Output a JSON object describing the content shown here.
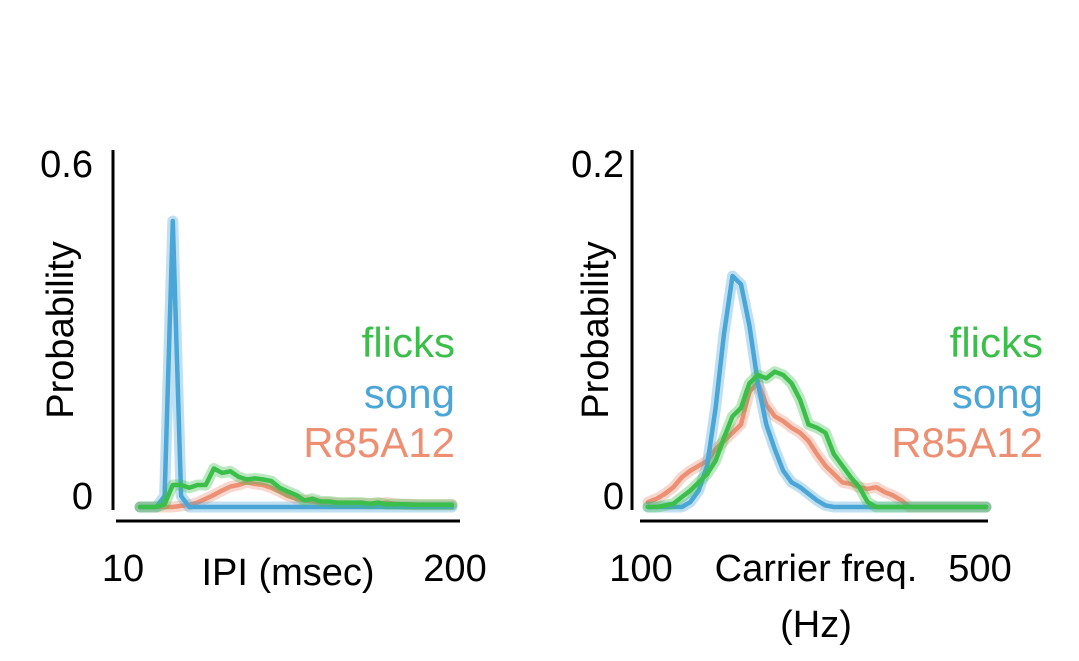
{
  "colors": {
    "flicks": "#3cbe4b",
    "song": "#4aa6d6",
    "R85A12": "#ec8f72"
  },
  "chart_data": [
    {
      "type": "line",
      "xlabel": "IPI (msec)",
      "ylabel": "Probability",
      "xlim": [
        10,
        200
      ],
      "ylim": [
        0,
        0.6
      ],
      "x_tick_labels": [
        "10",
        "200"
      ],
      "y_tick_labels": [
        "0",
        "0.6"
      ],
      "legend": [
        "flicks",
        "song",
        "R85A12"
      ],
      "legend_position": "right",
      "x": [
        10,
        15,
        20,
        25,
        30,
        35,
        40,
        45,
        50,
        55,
        60,
        65,
        70,
        75,
        80,
        85,
        90,
        95,
        100,
        105,
        110,
        115,
        120,
        125,
        130,
        135,
        140,
        145,
        150,
        155,
        160,
        165,
        170,
        175,
        180,
        185,
        190,
        195,
        200
      ],
      "series": [
        {
          "name": "flicks",
          "color": "#3cbe4b",
          "values": [
            0.0,
            0.0,
            0.0,
            0.005,
            0.04,
            0.04,
            0.035,
            0.04,
            0.04,
            0.07,
            0.062,
            0.065,
            0.055,
            0.05,
            0.052,
            0.05,
            0.047,
            0.035,
            0.028,
            0.022,
            0.012,
            0.015,
            0.01,
            0.01,
            0.008,
            0.008,
            0.008,
            0.008,
            0.006,
            0.008,
            0.005,
            0.005,
            0.005,
            0.004,
            0.004,
            0.004,
            0.004,
            0.004,
            0.004
          ]
        },
        {
          "name": "song",
          "color": "#4aa6d6",
          "values": [
            0.0,
            0.0,
            0.0,
            0.02,
            0.52,
            0.02,
            0.0,
            0.0,
            0.0,
            0.0,
            0.0,
            0.0,
            0.0,
            0.0,
            0.0,
            0.0,
            0.0,
            0.0,
            0.0,
            0.0,
            0.0,
            0.0,
            0.0,
            0.0,
            0.0,
            0.0,
            0.0,
            0.0,
            0.0,
            0.0,
            0.0,
            0.0,
            0.0,
            0.0,
            0.0,
            0.0,
            0.0,
            0.0,
            0.0
          ]
        },
        {
          "name": "R85A12",
          "color": "#ec8f72",
          "values": [
            0.0,
            0.0,
            0.0,
            0.0,
            0.0,
            0.002,
            0.004,
            0.008,
            0.015,
            0.022,
            0.03,
            0.037,
            0.04,
            0.045,
            0.042,
            0.04,
            0.035,
            0.028,
            0.02,
            0.015,
            0.012,
            0.01,
            0.008,
            0.008,
            0.007,
            0.006,
            0.007,
            0.006,
            0.006,
            0.006,
            0.008,
            0.006,
            0.005,
            0.005,
            0.004,
            0.004,
            0.004,
            0.004,
            0.004
          ]
        }
      ]
    },
    {
      "type": "line",
      "xlabel": "Carrier freq. (Hz)",
      "xlabel_lines": [
        "Carrier freq.",
        "(Hz)"
      ],
      "ylabel": "Probability",
      "xlim": [
        100,
        500
      ],
      "ylim": [
        0,
        0.2
      ],
      "x_tick_labels": [
        "100",
        "500"
      ],
      "y_tick_labels": [
        "0",
        "0.2"
      ],
      "legend": [
        "flicks",
        "song",
        "R85A12"
      ],
      "legend_position": "right",
      "x": [
        100,
        110,
        120,
        130,
        140,
        150,
        160,
        170,
        180,
        190,
        200,
        210,
        220,
        230,
        240,
        250,
        260,
        270,
        280,
        290,
        300,
        310,
        320,
        330,
        340,
        350,
        360,
        370,
        380,
        390,
        400,
        410,
        420,
        430,
        440,
        450,
        460,
        470,
        480,
        490,
        500
      ],
      "series": [
        {
          "name": "flicks",
          "color": "#3cbe4b",
          "values": [
            0.0,
            0.0,
            0.001,
            0.002,
            0.006,
            0.01,
            0.015,
            0.02,
            0.028,
            0.042,
            0.055,
            0.06,
            0.075,
            0.08,
            0.078,
            0.082,
            0.08,
            0.075,
            0.065,
            0.05,
            0.048,
            0.045,
            0.032,
            0.025,
            0.018,
            0.012,
            0.003,
            0.0,
            0.0,
            0.0,
            0.0,
            0.0,
            0.0,
            0.0,
            0.0,
            0.0,
            0.0,
            0.0,
            0.0,
            0.0,
            0.0
          ]
        },
        {
          "name": "song",
          "color": "#4aa6d6",
          "values": [
            0.0,
            0.0,
            0.0,
            0.0,
            0.0,
            0.003,
            0.01,
            0.025,
            0.06,
            0.105,
            0.14,
            0.135,
            0.11,
            0.075,
            0.05,
            0.035,
            0.022,
            0.015,
            0.012,
            0.008,
            0.004,
            0.001,
            0.0,
            0.0,
            0.0,
            0.0,
            0.0,
            0.0,
            0.0,
            0.0,
            0.0,
            0.0,
            0.0,
            0.0,
            0.0,
            0.0,
            0.0,
            0.0,
            0.0,
            0.0,
            0.0
          ]
        },
        {
          "name": "R85A12",
          "color": "#ec8f72",
          "values": [
            0.003,
            0.005,
            0.008,
            0.012,
            0.018,
            0.022,
            0.025,
            0.028,
            0.035,
            0.04,
            0.045,
            0.05,
            0.07,
            0.075,
            0.062,
            0.055,
            0.052,
            0.048,
            0.045,
            0.04,
            0.032,
            0.025,
            0.02,
            0.015,
            0.014,
            0.012,
            0.011,
            0.012,
            0.009,
            0.007,
            0.004,
            0.0,
            0.0,
            0.0,
            0.0,
            0.0,
            0.0,
            0.0,
            0.0,
            0.0,
            0.0
          ]
        }
      ]
    }
  ]
}
